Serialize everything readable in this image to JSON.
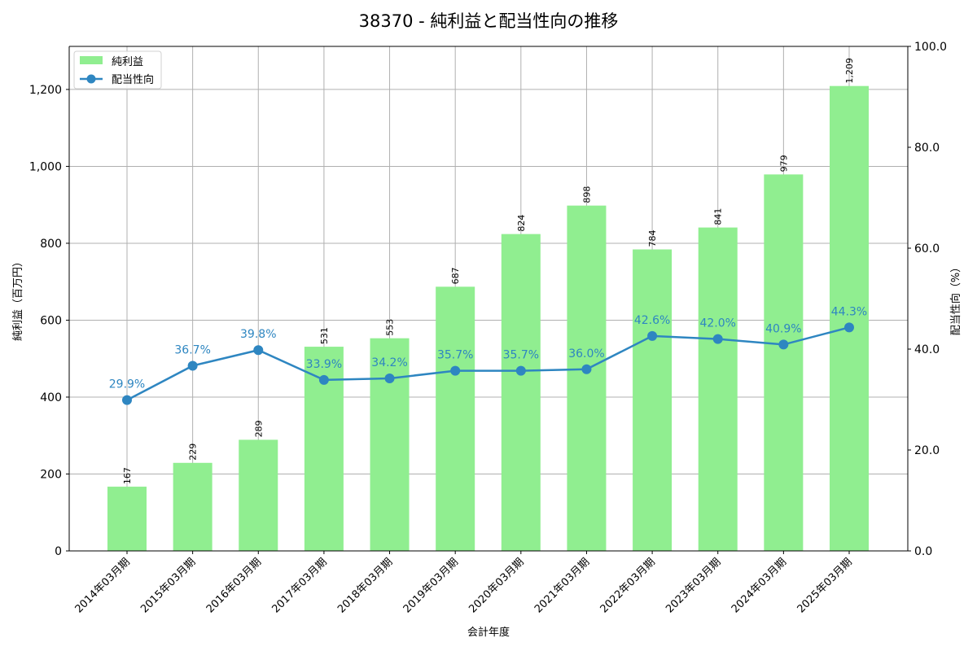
{
  "title": "38370 - 純利益と配当性向の推移",
  "legend": {
    "bar_label": "純利益",
    "line_label": "配当性向"
  },
  "colors": {
    "bar": "#90ee90",
    "line": "#2e86c1",
    "grid": "#b0b0b0",
    "axis": "#000000"
  },
  "chart_data": {
    "type": "bar+line",
    "title": "38370 - 純利益と配当性向の推移",
    "xlabel": "会計年度",
    "ylabel": "純利益（百万円）",
    "y2label": "配当性向（%）",
    "categories": [
      "2014年03月期",
      "2015年03月期",
      "2016年03月期",
      "2017年03月期",
      "2018年03月期",
      "2019年03月期",
      "2020年03月期",
      "2021年03月期",
      "2022年03月期",
      "2023年03月期",
      "2024年03月期",
      "2025年03月期"
    ],
    "series": [
      {
        "name": "純利益",
        "type": "bar",
        "axis": "left",
        "values": [
          167,
          229,
          289,
          531,
          553,
          687,
          824,
          898,
          784,
          841,
          979,
          1209
        ],
        "labels": [
          "167",
          "229",
          "289",
          "531",
          "553",
          "687",
          "824",
          "898",
          "784",
          "841",
          "979",
          "1,209"
        ]
      },
      {
        "name": "配当性向",
        "type": "line",
        "axis": "right",
        "values": [
          29.9,
          36.7,
          39.8,
          33.9,
          34.2,
          35.7,
          35.7,
          36.0,
          42.6,
          42.0,
          40.9,
          44.3
        ],
        "labels": [
          "29.9%",
          "36.7%",
          "39.8%",
          "33.9%",
          "34.2%",
          "35.7%",
          "35.7%",
          "36.0%",
          "42.6%",
          "42.0%",
          "40.9%",
          "44.3%"
        ]
      }
    ],
    "ylim": [
      0,
      1312
    ],
    "y2lim": [
      0,
      100
    ],
    "yticks": [
      "0",
      "200",
      "400",
      "600",
      "800",
      "1,000",
      "1,200"
    ],
    "ytick_values": [
      0,
      200,
      400,
      600,
      800,
      1000,
      1200
    ],
    "y2ticks": [
      "0.0",
      "20.0",
      "40.0",
      "60.0",
      "80.0",
      "100.0"
    ],
    "y2tick_values": [
      0,
      20,
      40,
      60,
      80,
      100
    ],
    "grid": true,
    "legend_position": "upper left"
  }
}
